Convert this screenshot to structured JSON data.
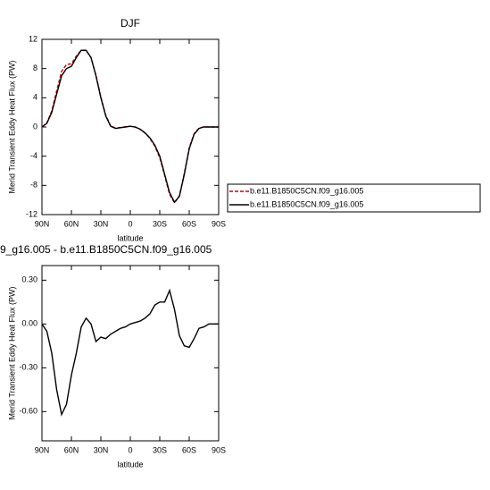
{
  "chart_data": [
    {
      "type": "line",
      "title": "DJF",
      "x_label": "latitude",
      "y_label": "Merid Transient Eddy Heat Flux (PW)",
      "x": [
        90,
        85,
        80,
        75,
        70,
        65,
        60,
        55,
        50,
        45,
        40,
        35,
        30,
        25,
        20,
        15,
        10,
        5,
        0,
        -5,
        -10,
        -15,
        -20,
        -25,
        -30,
        -35,
        -40,
        -45,
        -50,
        -55,
        -60,
        -65,
        -70,
        -75,
        -80,
        -85,
        -90
      ],
      "xlim": [
        90,
        -90
      ],
      "xticks": [
        {
          "value": 90,
          "label": "90N"
        },
        {
          "value": 60,
          "label": "60N"
        },
        {
          "value": 30,
          "label": "30N"
        },
        0,
        {
          "value": -30,
          "label": "30S"
        },
        {
          "value": -60,
          "label": "60S"
        },
        {
          "value": -90,
          "label": "90S"
        }
      ],
      "ylim": [
        -12,
        12
      ],
      "yticks": [
        12,
        8,
        4,
        0,
        -4,
        -8,
        -12
      ],
      "series": [
        {
          "name": "b.e11.B1850C5CN.f09_g16.005",
          "color": "#cc0000",
          "dash": true,
          "values": [
            0,
            0.55,
            2.2,
            4.95,
            7.62,
            8.55,
            8.65,
            9.7,
            10.52,
            10.46,
            9.5,
            7.12,
            4.09,
            1.6,
            0.17,
            -0.15,
            -0.07,
            0.02,
            0.1,
            -0.01,
            -0.32,
            -0.84,
            -1.57,
            -2.63,
            -4.21,
            -6.65,
            -9.23,
            -10.4,
            -9.42,
            -6.35,
            -2.84,
            -0.9,
            -0.17,
            0.02,
            0,
            0,
            0
          ]
        },
        {
          "name": "b.e11.B1850C5CN.f09_g16.005",
          "color": "#000000",
          "dash": false,
          "values": [
            0,
            0.5,
            2,
            4.5,
            7,
            8,
            8.3,
            9.5,
            10.5,
            10.5,
            9.5,
            7,
            4,
            1.5,
            0.1,
            -0.2,
            -0.1,
            0,
            0.1,
            0,
            -0.3,
            -0.8,
            -1.5,
            -2.5,
            -4,
            -6.5,
            -9,
            -10.3,
            -9.5,
            -6.5,
            -3,
            -1,
            -0.2,
            0,
            0,
            0,
            0
          ]
        }
      ]
    },
    {
      "type": "line",
      "title": "9_g16.005 - b.e11.B1850C5CN.f09_g16.005",
      "x_label": "latitude",
      "y_label": "Merid Transient Eddy Heat Flux (PW)",
      "x": [
        90,
        85,
        80,
        75,
        70,
        65,
        60,
        55,
        50,
        45,
        40,
        35,
        30,
        25,
        20,
        15,
        10,
        5,
        0,
        -5,
        -10,
        -15,
        -20,
        -25,
        -30,
        -35,
        -40,
        -45,
        -50,
        -55,
        -60,
        -65,
        -70,
        -75,
        -80,
        -85,
        -90
      ],
      "xlim": [
        90,
        -90
      ],
      "xticks": [
        {
          "value": 90,
          "label": "90N"
        },
        {
          "value": 60,
          "label": "60N"
        },
        {
          "value": 30,
          "label": "30N"
        },
        0,
        {
          "value": -30,
          "label": "30S"
        },
        {
          "value": -60,
          "label": "60S"
        },
        {
          "value": -90,
          "label": "90S"
        }
      ],
      "ylim": [
        -0.8,
        0.4
      ],
      "yticks": [
        {
          "value": 0.3,
          "label": "0.30"
        },
        {
          "value": 0,
          "label": "0.00"
        },
        {
          "value": -0.3,
          "label": "-0.30"
        },
        {
          "value": -0.6,
          "label": "-0.60"
        }
      ],
      "series": [
        {
          "color": "#000000",
          "dash": false,
          "values": [
            0,
            -0.05,
            -0.2,
            -0.45,
            -0.62,
            -0.55,
            -0.35,
            -0.2,
            -0.02,
            0.04,
            0,
            -0.12,
            -0.09,
            -0.1,
            -0.07,
            -0.05,
            -0.03,
            -0.02,
            0,
            0.01,
            0.02,
            0.04,
            0.07,
            0.13,
            0.15,
            0.15,
            0.23,
            0.1,
            -0.08,
            -0.15,
            -0.16,
            -0.1,
            -0.03,
            -0.02,
            0,
            0,
            0
          ]
        }
      ]
    }
  ]
}
